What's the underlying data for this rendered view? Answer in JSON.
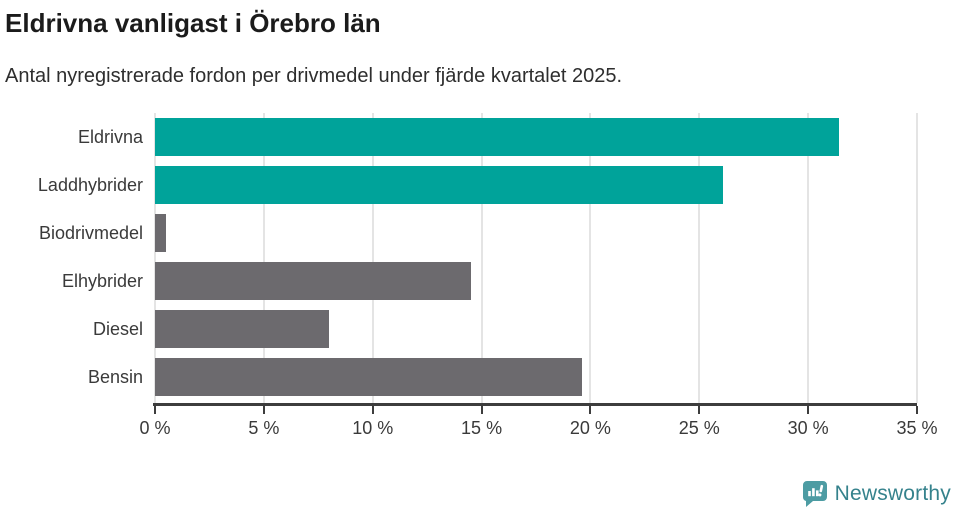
{
  "title": "Eldrivna vanligast i Örebro län",
  "subtitle": "Antal nyregistrerade fordon per drivmedel under fjärde kvartalet 2025.",
  "chart_data": {
    "type": "bar",
    "orientation": "horizontal",
    "title": "Eldrivna vanligast i Örebro län",
    "subtitle": "Antal nyregistrerade fordon per drivmedel under fjärde kvartalet 2025.",
    "categories": [
      "Eldrivna",
      "Laddhybrider",
      "Biodrivmedel",
      "Elhybrider",
      "Diesel",
      "Bensin"
    ],
    "values": [
      31.4,
      26.1,
      0.5,
      14.5,
      8.0,
      19.6
    ],
    "unit": "%",
    "xlim": [
      0,
      35
    ],
    "x_ticks": [
      0,
      5,
      10,
      15,
      20,
      25,
      30,
      35
    ],
    "x_tick_labels": [
      "0 %",
      "5 %",
      "10 %",
      "15 %",
      "20 %",
      "25 %",
      "30 %",
      "35 %"
    ],
    "grid": true,
    "legend": "none",
    "bar_colors": [
      "#00a39a",
      "#00a39a",
      "#6c6a6e",
      "#6c6a6e",
      "#6c6a6e",
      "#6c6a6e"
    ]
  },
  "colors": {
    "highlight_teal": "#00a39a",
    "neutral_gray": "#6c6a6e",
    "gridline": "#e4e4e4",
    "axis": "#3d3d3d",
    "title_text": "#1b1b1b",
    "body_text": "#3a3a3a",
    "logo_icon": "#4d9ca3",
    "logo_text": "#35828c"
  },
  "branding": {
    "wordmark": "Newsworthy",
    "icon": "newsworthy-speech-bubble-chart-icon"
  }
}
